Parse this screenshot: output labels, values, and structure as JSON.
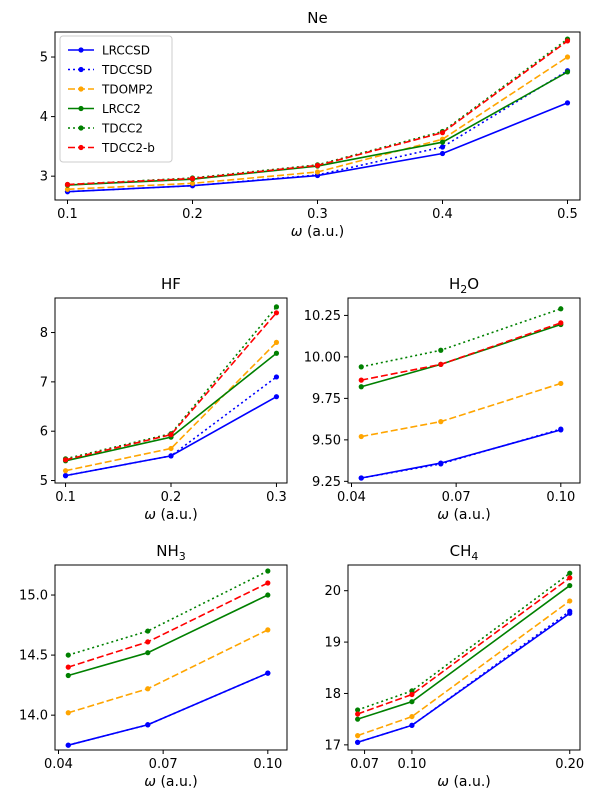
{
  "chart_data": [
    {
      "type": "line",
      "title": "Ne",
      "xlabel": "ω (a.u.)",
      "ylabel": "",
      "xlim": [
        0.09,
        0.51
      ],
      "ylim": [
        2.6,
        5.42
      ],
      "xticks": [
        0.1,
        0.2,
        0.3,
        0.4,
        0.5
      ],
      "xtick_labels": [
        "0.1",
        "0.2",
        "0.3",
        "0.4",
        "0.5"
      ],
      "yticks": [
        3,
        4,
        5
      ],
      "ytick_labels": [
        "3",
        "4",
        "5"
      ],
      "x": [
        0.1,
        0.2,
        0.3,
        0.4,
        0.5
      ],
      "legend": "top-left",
      "series": [
        {
          "name": "LRCCSD",
          "values": [
            2.74,
            2.84,
            3.01,
            3.38,
            4.23
          ]
        },
        {
          "name": "TDCCSD",
          "values": [
            2.74,
            2.84,
            3.02,
            3.49,
            4.77
          ]
        },
        {
          "name": "TDOMP2",
          "values": [
            2.78,
            2.88,
            3.07,
            3.62,
            5.0
          ]
        },
        {
          "name": "LRCC2",
          "values": [
            2.85,
            2.95,
            3.17,
            3.57,
            4.75
          ]
        },
        {
          "name": "TDCC2",
          "values": [
            2.86,
            2.97,
            3.19,
            3.75,
            5.3
          ]
        },
        {
          "name": "TDCC2-b",
          "values": [
            2.86,
            2.96,
            3.18,
            3.73,
            5.27
          ]
        }
      ]
    },
    {
      "type": "line",
      "title": "HF",
      "xlabel": "ω (a.u.)",
      "ylabel": "",
      "xlim": [
        0.09,
        0.31
      ],
      "ylim": [
        4.95,
        8.7
      ],
      "xticks": [
        0.1,
        0.2,
        0.3
      ],
      "xtick_labels": [
        "0.1",
        "0.2",
        "0.3"
      ],
      "yticks": [
        5,
        6,
        7,
        8
      ],
      "ytick_labels": [
        "5",
        "6",
        "7",
        "8"
      ],
      "x": [
        0.1,
        0.2,
        0.3
      ],
      "series": [
        {
          "name": "LRCCSD",
          "values": [
            5.1,
            5.5,
            6.7
          ]
        },
        {
          "name": "TDCCSD",
          "values": [
            5.1,
            5.5,
            7.1
          ]
        },
        {
          "name": "TDOMP2",
          "values": [
            5.2,
            5.65,
            7.8
          ]
        },
        {
          "name": "LRCC2",
          "values": [
            5.4,
            5.88,
            7.58
          ]
        },
        {
          "name": "TDCC2",
          "values": [
            5.44,
            5.95,
            8.52
          ]
        },
        {
          "name": "TDCC2-b",
          "values": [
            5.42,
            5.93,
            8.4
          ]
        }
      ]
    },
    {
      "type": "line",
      "title": "H₂O",
      "xlabel": "ω (a.u.)",
      "ylabel": "",
      "xlim": [
        0.039,
        0.1055
      ],
      "ylim": [
        9.24,
        10.355
      ],
      "xticks": [
        0.04,
        0.07,
        0.1
      ],
      "xtick_labels": [
        "0.04",
        "0.07",
        "0.10"
      ],
      "yticks": [
        9.25,
        9.5,
        9.75,
        10.0,
        10.25
      ],
      "ytick_labels": [
        "9.25",
        "9.50",
        "9.75",
        "10.00",
        "10.25"
      ],
      "x": [
        0.0428,
        0.0656,
        0.1
      ],
      "series": [
        {
          "name": "LRCCSD",
          "values": [
            9.27,
            9.36,
            9.56
          ]
        },
        {
          "name": "TDCCSD",
          "values": [
            9.27,
            9.355,
            9.565
          ]
        },
        {
          "name": "TDOMP2",
          "values": [
            9.52,
            9.61,
            9.84
          ]
        },
        {
          "name": "LRCC2",
          "values": [
            9.82,
            9.955,
            10.195
          ]
        },
        {
          "name": "TDCC2",
          "values": [
            9.94,
            10.04,
            10.29
          ]
        },
        {
          "name": "TDCC2-b",
          "values": [
            9.86,
            9.955,
            10.205
          ]
        }
      ]
    },
    {
      "type": "line",
      "title": "NH₃",
      "xlabel": "ω (a.u.)",
      "ylabel": "",
      "xlim": [
        0.039,
        0.1055
      ],
      "ylim": [
        13.71,
        15.25
      ],
      "xticks": [
        0.04,
        0.07,
        0.1
      ],
      "xtick_labels": [
        "0.04",
        "0.07",
        "0.10"
      ],
      "yticks": [
        14.0,
        14.5,
        15.0
      ],
      "ytick_labels": [
        "14.0",
        "14.5",
        "15.0"
      ],
      "x": [
        0.0428,
        0.0656,
        0.1
      ],
      "series": [
        {
          "name": "LRCCSD",
          "values": [
            13.75,
            13.92,
            14.35
          ]
        },
        {
          "name": "TDCCSD",
          "values": [
            13.75,
            13.92,
            14.35
          ]
        },
        {
          "name": "TDOMP2",
          "values": [
            14.02,
            14.22,
            14.71
          ]
        },
        {
          "name": "LRCC2",
          "values": [
            14.33,
            14.52,
            15.0
          ]
        },
        {
          "name": "TDCC2",
          "values": [
            14.5,
            14.7,
            15.2
          ]
        },
        {
          "name": "TDCC2-b",
          "values": [
            14.4,
            14.61,
            15.1
          ]
        }
      ]
    },
    {
      "type": "line",
      "title": "CH₄",
      "xlabel": "ω (a.u.)",
      "ylabel": "",
      "xlim": [
        0.0595,
        0.2065
      ],
      "ylim": [
        16.9,
        20.5
      ],
      "xticks": [
        0.07,
        0.1,
        0.2
      ],
      "xtick_labels": [
        "0.07",
        "0.10",
        "0.20"
      ],
      "yticks": [
        17,
        18,
        19,
        20
      ],
      "ytick_labels": [
        "17",
        "18",
        "19",
        "20"
      ],
      "x": [
        0.0656,
        0.1,
        0.2
      ],
      "series": [
        {
          "name": "LRCCSD",
          "values": [
            17.05,
            17.38,
            19.56
          ]
        },
        {
          "name": "TDCCSD",
          "values": [
            17.05,
            17.38,
            19.6
          ]
        },
        {
          "name": "TDOMP2",
          "values": [
            17.18,
            17.55,
            19.8
          ]
        },
        {
          "name": "LRCC2",
          "values": [
            17.5,
            17.84,
            20.1
          ]
        },
        {
          "name": "TDCC2",
          "values": [
            17.68,
            18.05,
            20.34
          ]
        },
        {
          "name": "TDCC2-b",
          "values": [
            17.6,
            17.98,
            20.25
          ]
        }
      ]
    }
  ],
  "styles": {
    "LRCCSD": {
      "color": "#0000ff",
      "dash": "solid"
    },
    "TDCCSD": {
      "color": "#0000ff",
      "dash": "dotted"
    },
    "TDOMP2": {
      "color": "#ffa500",
      "dash": "dashed"
    },
    "LRCC2": {
      "color": "#008000",
      "dash": "solid"
    },
    "TDCC2": {
      "color": "#008000",
      "dash": "dotted"
    },
    "TDCC2-b": {
      "color": "#ff0000",
      "dash": "dashed"
    }
  }
}
